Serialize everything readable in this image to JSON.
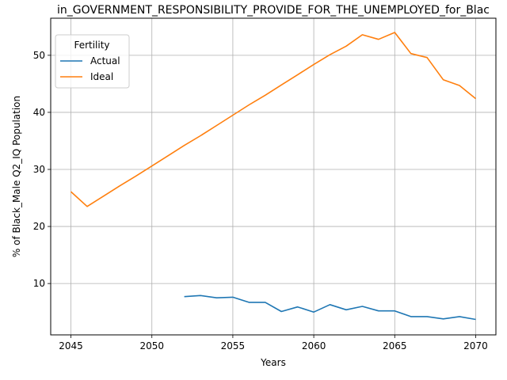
{
  "chart_data": {
    "type": "line",
    "title": "in_GOVERNMENT_RESPONSIBILITY_PROVIDE_FOR_THE_UNEMPLOYED_for_Blac",
    "xlabel": "Years",
    "ylabel": "% of Black_Male Q2_IQ Population",
    "xlim": [
      2043.75,
      2071.25
    ],
    "ylim": [
      1.0,
      56.5
    ],
    "xticks": [
      2045,
      2050,
      2055,
      2060,
      2065,
      2070
    ],
    "yticks": [
      10,
      20,
      30,
      40,
      50
    ],
    "grid": true,
    "legend": {
      "title": "Fertility",
      "placement": "top-left"
    },
    "series": [
      {
        "name": "Actual",
        "color": "#1f77b4",
        "x": [
          2052,
          2053,
          2054,
          2055,
          2056,
          2057,
          2058,
          2059,
          2060,
          2061,
          2062,
          2063,
          2064,
          2065,
          2066,
          2067,
          2068,
          2069,
          2070
        ],
        "values": [
          7.7,
          7.9,
          7.5,
          7.6,
          6.7,
          6.7,
          5.1,
          5.9,
          5.0,
          6.3,
          5.4,
          6.0,
          5.2,
          5.2,
          4.2,
          4.2,
          3.8,
          4.2,
          3.7
        ]
      },
      {
        "name": "Ideal",
        "color": "#ff7f0e",
        "x": [
          2045,
          2046,
          2047,
          2048,
          2049,
          2050,
          2051,
          2052,
          2053,
          2054,
          2055,
          2056,
          2057,
          2058,
          2059,
          2060,
          2061,
          2062,
          2063,
          2064,
          2065,
          2066,
          2067,
          2068,
          2069,
          2070
        ],
        "values": [
          26.1,
          23.5,
          25.3,
          27.1,
          28.8,
          30.6,
          32.4,
          34.2,
          35.9,
          37.7,
          39.5,
          41.3,
          43.0,
          44.8,
          46.6,
          48.4,
          50.1,
          51.6,
          53.6,
          52.8,
          54.0,
          50.3,
          49.6,
          45.7,
          44.7,
          42.4
        ]
      }
    ]
  }
}
